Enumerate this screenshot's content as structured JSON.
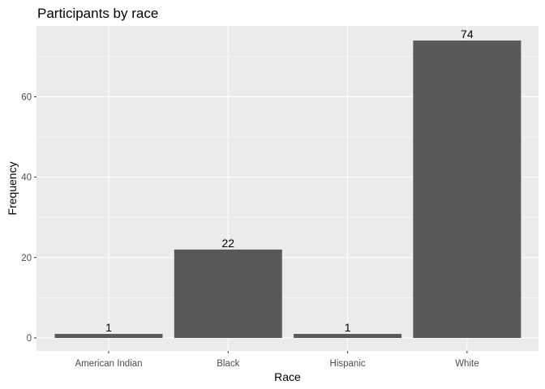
{
  "chart_data": {
    "type": "bar",
    "title": "Participants by race",
    "xlabel": "Race",
    "ylabel": "Frequency",
    "categories": [
      "American Indian",
      "Black",
      "Hispanic",
      "White"
    ],
    "values": [
      1,
      22,
      1,
      74
    ],
    "data_labels": [
      "1",
      "22",
      "1",
      "74"
    ],
    "ylim": [
      0,
      77.65
    ],
    "yticks": [
      0,
      20,
      40,
      60
    ],
    "ytick_labels": [
      "0",
      "20",
      "40",
      "60"
    ],
    "grid": true,
    "legend": "none",
    "colors": {
      "bar": "#595959",
      "panel_background": "#ebebeb",
      "grid_major": "#ffffff",
      "tick_label": "#4d4d4d"
    }
  }
}
